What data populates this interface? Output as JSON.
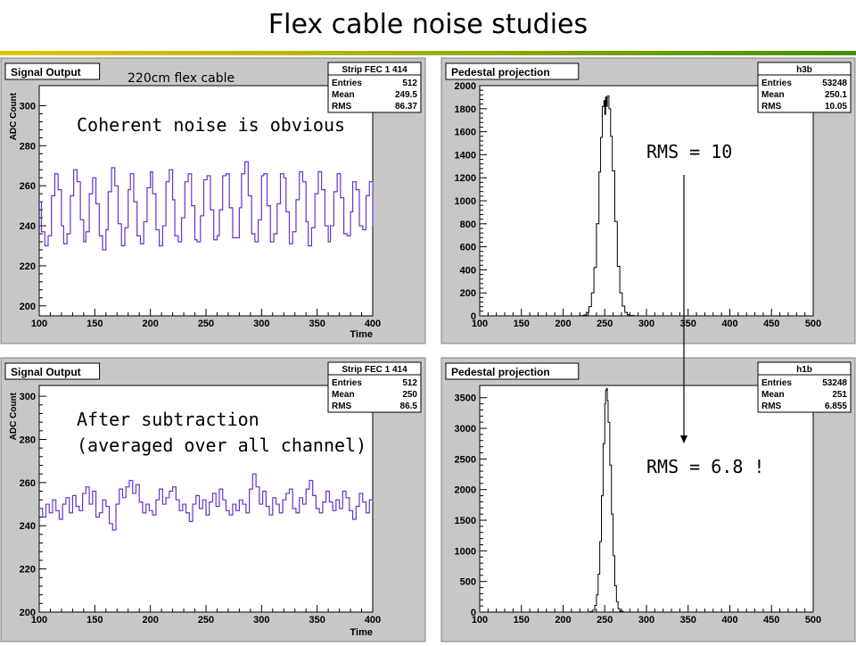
{
  "slide": {
    "title": "Flex cable noise studies",
    "cable_label": "220cm flex cable",
    "annot_coherent": "Coherent noise is obvious",
    "annot_after_line1": "After subtraction",
    "annot_after_line2": "(averaged over all channel)",
    "annot_rms_top": "RMS = 10",
    "annot_rms_bottom": "RMS = 6.8 !"
  },
  "colors": {
    "frame_bg": "#c7c7c7",
    "plot_bg": "#ffffff",
    "signal_line": "#6633cc",
    "histo_line": "#000000"
  },
  "chart_data": [
    {
      "id": "sig1",
      "type": "line",
      "title": "Signal Output",
      "stats": {
        "name": "Strip FEC 1 414",
        "rows": [
          [
            "Entries",
            "512"
          ],
          [
            "Mean",
            "249.5"
          ],
          [
            "RMS",
            "86.37"
          ]
        ]
      },
      "xlabel": "Time",
      "ylabel": "ADC Count",
      "xlim": [
        100,
        400
      ],
      "ylim": [
        195,
        310
      ],
      "xticks": [
        100,
        150,
        200,
        250,
        300,
        350,
        400
      ],
      "yticks": [
        200,
        220,
        240,
        260,
        280,
        300
      ],
      "series": [
        {
          "x": [
            100,
            102,
            105,
            108,
            111,
            114,
            117,
            120,
            122,
            125,
            128,
            131,
            134,
            137,
            140,
            142,
            145,
            148,
            151,
            154,
            157,
            160,
            162,
            165,
            168,
            171,
            174,
            177,
            180,
            182,
            185,
            188,
            191,
            194,
            197,
            200,
            202,
            205,
            208,
            211,
            214,
            217,
            220,
            222,
            225,
            228,
            231,
            234,
            237,
            240,
            242,
            245,
            248,
            251,
            254,
            257,
            260,
            262,
            265,
            268,
            271,
            274,
            277,
            280,
            282,
            285,
            288,
            291,
            294,
            297,
            300,
            302,
            305,
            308,
            311,
            314,
            317,
            320,
            322,
            325,
            328,
            331,
            334,
            337,
            340,
            342,
            345,
            348,
            351,
            354,
            357,
            360,
            362,
            365,
            368,
            371,
            374,
            377,
            380,
            382,
            385,
            388,
            391,
            394,
            397,
            400
          ],
          "y": [
            252,
            237,
            230,
            235,
            255,
            266,
            258,
            240,
            231,
            236,
            255,
            268,
            262,
            243,
            232,
            237,
            256,
            264,
            251,
            235,
            228,
            238,
            257,
            269,
            260,
            241,
            230,
            239,
            258,
            266,
            252,
            235,
            231,
            242,
            259,
            267,
            256,
            238,
            230,
            240,
            262,
            268,
            253,
            235,
            232,
            244,
            262,
            266,
            250,
            233,
            232,
            245,
            263,
            265,
            248,
            233,
            235,
            248,
            265,
            266,
            249,
            234,
            234,
            249,
            266,
            272,
            255,
            236,
            232,
            243,
            265,
            266,
            250,
            232,
            236,
            251,
            266,
            264,
            247,
            231,
            237,
            253,
            267,
            262,
            242,
            230,
            239,
            256,
            267,
            258,
            240,
            232,
            240,
            257,
            266,
            254,
            236,
            235,
            247,
            262,
            258,
            240,
            238,
            255,
            262,
            240
          ]
        }
      ]
    },
    {
      "id": "ped1",
      "type": "bar",
      "title": "Pedestal projection",
      "stats": {
        "name": "h3b",
        "rows": [
          [
            "Entries",
            "53248"
          ],
          [
            "Mean",
            "250.1"
          ],
          [
            "RMS",
            "10.05"
          ]
        ]
      },
      "xlabel": "",
      "ylabel": "",
      "xlim": [
        100,
        500
      ],
      "ylim": [
        0,
        2000
      ],
      "xticks": [
        100,
        150,
        200,
        250,
        300,
        350,
        400,
        450,
        500
      ],
      "yticks": [
        0,
        200,
        400,
        600,
        800,
        1000,
        1200,
        1400,
        1600,
        1800,
        2000
      ],
      "series": [
        {
          "x": [
            215,
            220,
            225,
            228,
            231,
            234,
            237,
            240,
            243,
            245,
            247,
            249,
            250,
            251,
            252,
            253,
            255,
            257,
            259,
            262,
            265,
            268,
            271,
            274,
            277,
            280,
            285
          ],
          "y": [
            0,
            2,
            8,
            30,
            80,
            200,
            420,
            800,
            1250,
            1550,
            1820,
            1870,
            1750,
            1900,
            1820,
            1910,
            1800,
            1560,
            1260,
            820,
            430,
            200,
            85,
            30,
            10,
            3,
            0
          ]
        }
      ]
    },
    {
      "id": "sig2",
      "type": "line",
      "title": "Signal Output",
      "stats": {
        "name": "Strip FEC 1 414",
        "rows": [
          [
            "Entries",
            "512"
          ],
          [
            "Mean",
            "250"
          ],
          [
            "RMS",
            "86.5"
          ]
        ]
      },
      "xlabel": "Time",
      "ylabel": "ADC Count",
      "xlim": [
        100,
        400
      ],
      "ylim": [
        200,
        305
      ],
      "xticks": [
        100,
        150,
        200,
        250,
        300,
        350,
        400
      ],
      "yticks": [
        200,
        220,
        240,
        260,
        280,
        300
      ],
      "series": [
        {
          "x": [
            100,
            103,
            106,
            109,
            112,
            115,
            118,
            121,
            124,
            127,
            130,
            133,
            136,
            139,
            142,
            145,
            148,
            151,
            154,
            157,
            160,
            163,
            166,
            169,
            172,
            175,
            178,
            181,
            184,
            187,
            190,
            193,
            196,
            199,
            202,
            205,
            208,
            211,
            214,
            217,
            220,
            223,
            226,
            229,
            232,
            235,
            238,
            241,
            244,
            247,
            250,
            253,
            256,
            259,
            262,
            265,
            268,
            271,
            274,
            277,
            280,
            283,
            286,
            289,
            292,
            295,
            298,
            301,
            304,
            307,
            310,
            313,
            316,
            319,
            322,
            325,
            328,
            331,
            334,
            337,
            340,
            343,
            346,
            349,
            352,
            355,
            358,
            361,
            364,
            367,
            370,
            373,
            376,
            379,
            382,
            385,
            388,
            391,
            394,
            397,
            400
          ],
          "y": [
            248,
            244,
            250,
            246,
            252,
            247,
            243,
            250,
            253,
            246,
            254,
            249,
            247,
            255,
            258,
            250,
            256,
            244,
            246,
            252,
            249,
            241,
            238,
            250,
            257,
            253,
            258,
            261,
            255,
            259,
            251,
            246,
            250,
            247,
            245,
            252,
            257,
            250,
            253,
            256,
            258,
            252,
            247,
            250,
            246,
            242,
            250,
            254,
            248,
            252,
            245,
            251,
            255,
            249,
            257,
            252,
            247,
            245,
            250,
            247,
            252,
            250,
            246,
            257,
            264,
            258,
            250,
            256,
            249,
            245,
            253,
            250,
            246,
            252,
            255,
            257,
            248,
            246,
            253,
            250,
            257,
            261,
            254,
            248,
            246,
            251,
            256,
            251,
            247,
            252,
            248,
            256,
            253,
            247,
            243,
            249,
            255,
            251,
            246,
            252,
            251
          ]
        }
      ]
    },
    {
      "id": "ped2",
      "type": "bar",
      "title": "Pedestal projection",
      "stats": {
        "name": "h1b",
        "rows": [
          [
            "Entries",
            "53248"
          ],
          [
            "Mean",
            "251"
          ],
          [
            "RMS",
            "6.855"
          ]
        ]
      },
      "xlabel": "",
      "ylabel": "",
      "xlim": [
        100,
        500
      ],
      "ylim": [
        0,
        3700
      ],
      "xticks": [
        100,
        150,
        200,
        250,
        300,
        350,
        400,
        450,
        500
      ],
      "yticks": [
        0,
        500,
        1000,
        1500,
        2000,
        2500,
        3000,
        3500
      ],
      "series": [
        {
          "x": [
            228,
            232,
            235,
            238,
            240,
            242,
            244,
            246,
            248,
            250,
            251,
            252,
            253,
            254,
            256,
            258,
            260,
            262,
            264,
            266,
            268,
            272
          ],
          "y": [
            0,
            8,
            30,
            110,
            280,
            620,
            1150,
            1900,
            2750,
            3400,
            3620,
            3650,
            3450,
            3100,
            2400,
            1600,
            920,
            430,
            170,
            55,
            15,
            0
          ]
        }
      ]
    }
  ]
}
